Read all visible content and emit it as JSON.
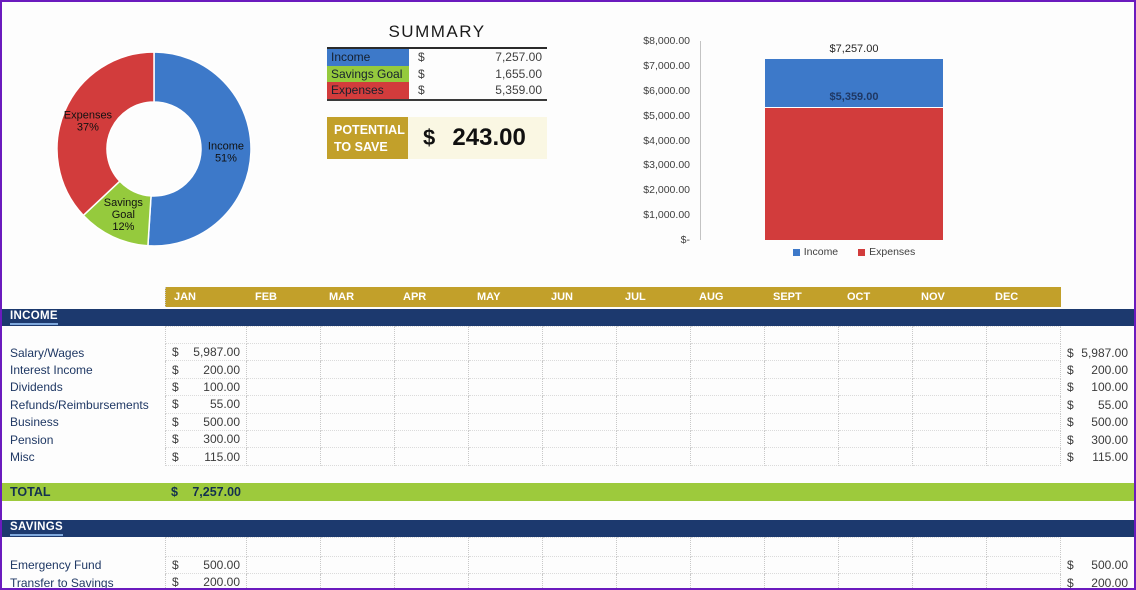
{
  "summary": {
    "title": "SUMMARY",
    "rows": [
      {
        "label": "Income",
        "currency": "$",
        "amount": "7,257.00",
        "swatch": "#3D79C9"
      },
      {
        "label": "Savings Goal",
        "currency": "$",
        "amount": "1,655.00",
        "swatch": "#95CA3D"
      },
      {
        "label": "Expenses",
        "currency": "$",
        "amount": "5,359.00",
        "swatch": "#D23C3C"
      }
    ],
    "potential": {
      "line1": "POTENTIAL",
      "line2": "TO SAVE",
      "currency": "$",
      "amount": "243.00"
    }
  },
  "chart_data": [
    {
      "type": "pie",
      "subtype": "donut",
      "labels": [
        "Income",
        "Savings Goal",
        "Expenses"
      ],
      "values": [
        51,
        12,
        37
      ],
      "unit": "%",
      "colors": [
        "#3D79C9",
        "#95CA3D",
        "#D23C3C"
      ],
      "slice_labels": [
        [
          "Income",
          "51%"
        ],
        [
          "Savings",
          "Goal",
          "12%"
        ],
        [
          "Expenses",
          "37%"
        ]
      ],
      "legend_position": "none",
      "start_angle_deg": -90,
      "direction": "clockwise"
    },
    {
      "type": "bar",
      "categories": [
        ""
      ],
      "series": [
        {
          "name": "Income",
          "values": [
            7257
          ],
          "color": "#3D79C9"
        },
        {
          "name": "Expenses",
          "values": [
            5359
          ],
          "color": "#D23C3C"
        }
      ],
      "bar_layout": "overlapped",
      "data_labels": [
        "$7,257.00",
        "$5,359.00"
      ],
      "ylim": [
        0,
        8000
      ],
      "ytick_labels": [
        "$8,000.00",
        "$7,000.00",
        "$6,000.00",
        "$5,000.00",
        "$4,000.00",
        "$3,000.00",
        "$2,000.00",
        "$1,000.00",
        "$-"
      ],
      "grid": false,
      "legend": [
        "Income",
        "Expenses"
      ],
      "legend_position": "bottom"
    }
  ],
  "sheet": {
    "currency": "$",
    "months": [
      "JAN",
      "FEB",
      "MAR",
      "APR",
      "MAY",
      "JUN",
      "JUL",
      "AUG",
      "SEPT",
      "OCT",
      "NOV",
      "DEC"
    ],
    "income_section": {
      "title": "INCOME",
      "rows": [
        {
          "label": "Salary/Wages",
          "jan": "5,987.00",
          "total": "5,987.00"
        },
        {
          "label": "Interest Income",
          "jan": "200.00",
          "total": "200.00"
        },
        {
          "label": "Dividends",
          "jan": "100.00",
          "total": "100.00"
        },
        {
          "label": "Refunds/Reimbursements",
          "jan": "55.00",
          "total": "55.00"
        },
        {
          "label": "Business",
          "jan": "500.00",
          "total": "500.00"
        },
        {
          "label": "Pension",
          "jan": "300.00",
          "total": "300.00"
        },
        {
          "label": "Misc",
          "jan": "115.00",
          "total": "115.00"
        }
      ],
      "total_row": {
        "label": "TOTAL",
        "currency": "$",
        "amount": "7,257.00"
      }
    },
    "savings_section": {
      "title": "SAVINGS",
      "rows": [
        {
          "label": "Emergency Fund",
          "jan": "500.00",
          "total": "500.00"
        },
        {
          "label": "Transfer to Savings",
          "jan": "200.00",
          "total": "200.00"
        }
      ]
    }
  },
  "colors": {
    "accent_blue": "#3D79C9",
    "accent_red": "#D23C3C",
    "accent_green": "#95CA3D",
    "gold": "#C2A02A",
    "navy_band": "#1C396E",
    "total_green": "#9DCA3C",
    "potential_value_bg": "#FAF7E3",
    "border_purple": "#6B1BBE"
  }
}
